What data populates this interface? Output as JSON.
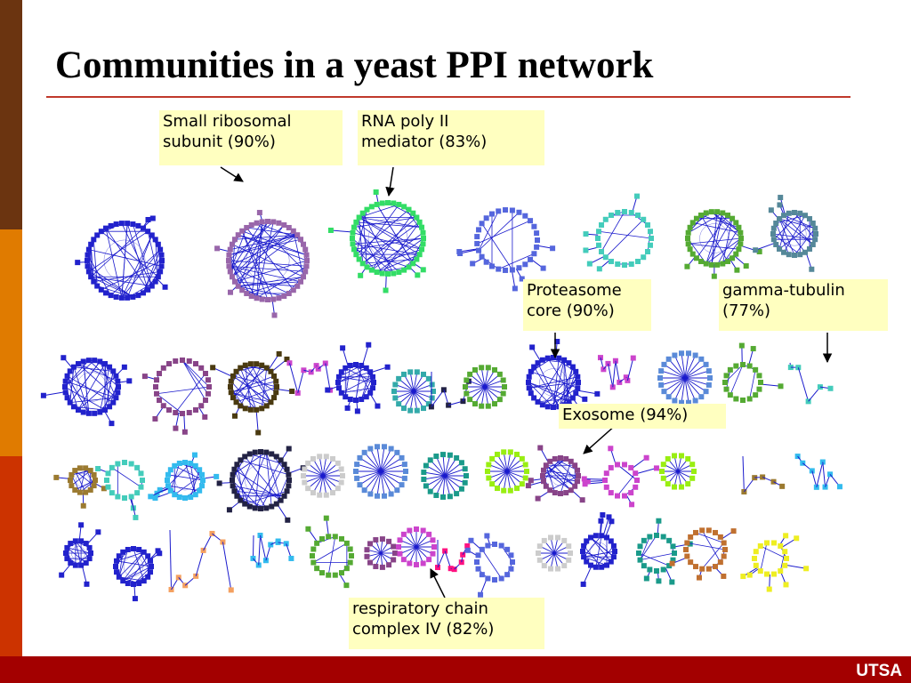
{
  "slide": {
    "title": "Communities in a yeast PPI network",
    "logo": "UTSA",
    "colors": {
      "sidebar": [
        "#6b3410",
        "#e07b00",
        "#cc3300"
      ],
      "rule": "#c0392b",
      "footer": "#a30000",
      "callout": "#ffffc0"
    }
  },
  "callouts": {
    "small_ribosomal": {
      "line1": "Small ribosomal",
      "line2": "subunit (90%)"
    },
    "rna_poly": {
      "line1": "RNA poly II",
      "line2": "mediator (83%)"
    },
    "proteasome": {
      "line1": "Proteasome",
      "line2": "core (90%)"
    },
    "gamma_tubulin": {
      "line1": "gamma-tubulin",
      "line2": "(77%)"
    },
    "exosome": {
      "line1": "Exosome (94%)"
    },
    "respiratory": {
      "line1": "respiratory chain",
      "line2": "complex IV (82%)"
    }
  },
  "network": {
    "node_colors": [
      "#2222cc",
      "#9966aa",
      "#33dd66",
      "#5566dd",
      "#44ccbb",
      "#55aa33",
      "#558899",
      "#a01010",
      "#884488",
      "#4a3a10",
      "#cc44cc",
      "#bb2233",
      "#33aaaa",
      "#222244",
      "#5a8ad8",
      "#e088e8",
      "#99ee11",
      "#9b7a30",
      "#33bbee",
      "#f4a060",
      "#ff1180",
      "#1a9a8a",
      "#c07030",
      "#eeee22",
      "#cccccc"
    ]
  }
}
